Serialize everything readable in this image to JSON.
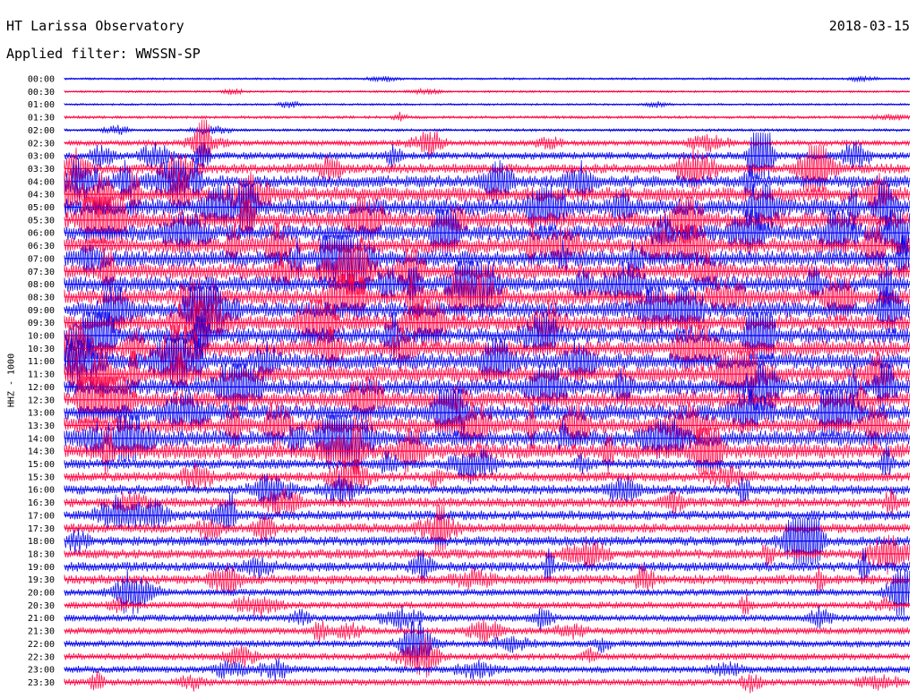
{
  "header": {
    "station": "HT Larissa Observatory",
    "date": "2018-03-15",
    "filter": "Applied filter: WWSSN-SP"
  },
  "colors": {
    "blue": "#0000ee",
    "red": "#ff0040"
  },
  "chart_data": {
    "type": "line",
    "chart_kind": "helicorder",
    "ylabel": "HHZ - 1000",
    "rows": [
      {
        "time": "00:00",
        "color": "blue"
      },
      {
        "time": "00:30",
        "color": "red"
      },
      {
        "time": "01:00",
        "color": "blue"
      },
      {
        "time": "01:30",
        "color": "red"
      },
      {
        "time": "02:00",
        "color": "blue"
      },
      {
        "time": "02:30",
        "color": "red"
      },
      {
        "time": "03:00",
        "color": "blue"
      },
      {
        "time": "03:30",
        "color": "red"
      },
      {
        "time": "04:00",
        "color": "blue"
      },
      {
        "time": "04:30",
        "color": "red"
      },
      {
        "time": "05:00",
        "color": "blue"
      },
      {
        "time": "05:30",
        "color": "red"
      },
      {
        "time": "06:00",
        "color": "blue"
      },
      {
        "time": "06:30",
        "color": "red"
      },
      {
        "time": "07:00",
        "color": "blue"
      },
      {
        "time": "07:30",
        "color": "red"
      },
      {
        "time": "08:00",
        "color": "blue"
      },
      {
        "time": "08:30",
        "color": "red"
      },
      {
        "time": "09:00",
        "color": "blue"
      },
      {
        "time": "09:30",
        "color": "red"
      },
      {
        "time": "10:00",
        "color": "blue"
      },
      {
        "time": "10:30",
        "color": "red"
      },
      {
        "time": "11:00",
        "color": "blue"
      },
      {
        "time": "11:30",
        "color": "red"
      },
      {
        "time": "12:00",
        "color": "blue"
      },
      {
        "time": "12:30",
        "color": "red"
      },
      {
        "time": "13:00",
        "color": "blue"
      },
      {
        "time": "13:30",
        "color": "red"
      },
      {
        "time": "14:00",
        "color": "blue"
      },
      {
        "time": "14:30",
        "color": "red"
      },
      {
        "time": "15:00",
        "color": "blue"
      },
      {
        "time": "15:30",
        "color": "red"
      },
      {
        "time": "16:00",
        "color": "blue"
      },
      {
        "time": "16:30",
        "color": "red"
      },
      {
        "time": "17:00",
        "color": "blue"
      },
      {
        "time": "17:30",
        "color": "red"
      },
      {
        "time": "18:00",
        "color": "blue"
      },
      {
        "time": "18:30",
        "color": "red"
      },
      {
        "time": "19:00",
        "color": "blue"
      },
      {
        "time": "19:30",
        "color": "red"
      },
      {
        "time": "20:00",
        "color": "blue"
      },
      {
        "time": "20:30",
        "color": "red"
      },
      {
        "time": "21:00",
        "color": "blue"
      },
      {
        "time": "21:30",
        "color": "red"
      },
      {
        "time": "22:00",
        "color": "blue"
      },
      {
        "time": "22:30",
        "color": "red"
      },
      {
        "time": "23:00",
        "color": "blue"
      },
      {
        "time": "23:30",
        "color": "red"
      }
    ]
  }
}
